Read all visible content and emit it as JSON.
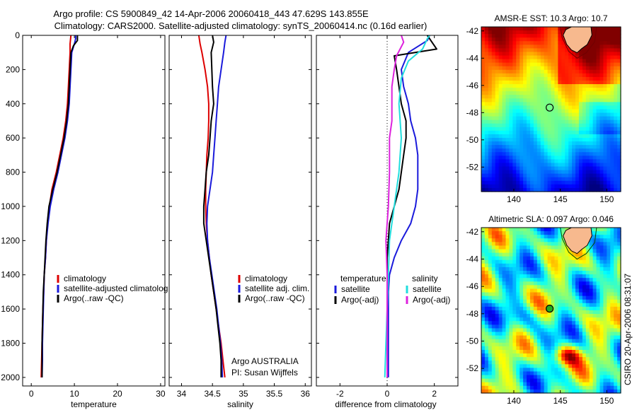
{
  "header": {
    "line1": "Argo profile: CS 5900849_42 14-Apr-2006 20060418_443 47.629S 143.855E",
    "line2": "Climatology: CARS2000. Satellite-adjusted climatology: synTS_20060414.nc (0.16d earlier)"
  },
  "credits": {
    "org": "Argo AUSTRALIA",
    "pi": "PI: Susan Wijffels",
    "stamp": "CSIRO 20-Apr-2006 08:31:07"
  },
  "colors": {
    "climatology": "#dd0000",
    "satellite": "#1a1adb",
    "argo": "#000000",
    "sat_salinity": "#22dddd",
    "argo_salinity": "#dd22dd",
    "land": "#f7b98e"
  },
  "chart_data": [
    {
      "type": "line",
      "xlabel": "temperature",
      "xlim": [
        -2,
        31
      ],
      "xticks": [
        0,
        10,
        20,
        30
      ],
      "ylim": [
        2050,
        0
      ],
      "yticks": [
        0,
        200,
        400,
        600,
        800,
        1000,
        1200,
        1400,
        1600,
        1800,
        2000
      ],
      "series": [
        {
          "name": "climatology",
          "color": "#dd0000",
          "points": [
            [
              9.2,
              0
            ],
            [
              9.0,
              50
            ],
            [
              9.0,
              100
            ],
            [
              8.8,
              200
            ],
            [
              8.6,
              300
            ],
            [
              8.4,
              400
            ],
            [
              8.0,
              500
            ],
            [
              7.4,
              600
            ],
            [
              6.6,
              700
            ],
            [
              5.8,
              800
            ],
            [
              4.8,
              900
            ],
            [
              4.2,
              1000
            ],
            [
              3.8,
              1100
            ],
            [
              3.5,
              1200
            ],
            [
              3.3,
              1300
            ],
            [
              3.0,
              1400
            ],
            [
              2.9,
              1500
            ],
            [
              2.7,
              1600
            ],
            [
              2.6,
              1700
            ],
            [
              2.5,
              1800
            ],
            [
              2.4,
              1900
            ],
            [
              2.3,
              2000
            ]
          ]
        },
        {
          "name": "satellite-adjusted climatolog",
          "color": "#1a1adb",
          "points": [
            [
              10.3,
              0
            ],
            [
              10.3,
              20
            ],
            [
              10.0,
              50
            ],
            [
              9.4,
              100
            ],
            [
              9.2,
              200
            ],
            [
              9.0,
              300
            ],
            [
              8.8,
              400
            ],
            [
              8.4,
              500
            ],
            [
              7.8,
              600
            ],
            [
              7.0,
              700
            ],
            [
              6.2,
              800
            ],
            [
              5.2,
              900
            ],
            [
              4.4,
              1000
            ],
            [
              3.9,
              1100
            ],
            [
              3.5,
              1200
            ],
            [
              3.3,
              1300
            ],
            [
              3.0,
              1400
            ],
            [
              2.9,
              1500
            ],
            [
              2.8,
              1600
            ],
            [
              2.7,
              1700
            ],
            [
              2.6,
              1800
            ],
            [
              2.6,
              1900
            ],
            [
              2.5,
              2000
            ]
          ]
        },
        {
          "name": "Argo(..raw -QC)",
          "color": "#000000",
          "points": [
            [
              10.7,
              0
            ],
            [
              10.7,
              30
            ],
            [
              9.8,
              60
            ],
            [
              9.2,
              100
            ],
            [
              9.0,
              200
            ],
            [
              8.8,
              300
            ],
            [
              8.6,
              400
            ],
            [
              8.2,
              500
            ],
            [
              7.6,
              600
            ],
            [
              6.8,
              700
            ],
            [
              6.0,
              800
            ],
            [
              5.0,
              900
            ],
            [
              4.1,
              1000
            ],
            [
              3.7,
              1100
            ],
            [
              3.4,
              1200
            ],
            [
              3.2,
              1300
            ],
            [
              3.0,
              1400
            ],
            [
              2.8,
              1500
            ],
            [
              2.7,
              1600
            ],
            [
              2.6,
              1700
            ],
            [
              2.5,
              1800
            ],
            [
              2.5,
              1900
            ],
            [
              2.5,
              2000
            ]
          ]
        }
      ],
      "legend": [
        "climatology",
        "satellite-adjusted climatolog",
        "Argo(..raw -QC)"
      ]
    },
    {
      "type": "line",
      "xlabel": "salinity",
      "xlim": [
        33.8,
        36.1
      ],
      "xticks": [
        34,
        34.5,
        35,
        35.5,
        36
      ],
      "ylim": [
        2050,
        0
      ],
      "series": [
        {
          "name": "climatology",
          "color": "#dd0000",
          "points": [
            [
              34.28,
              0
            ],
            [
              34.3,
              50
            ],
            [
              34.33,
              100
            ],
            [
              34.38,
              200
            ],
            [
              34.42,
              300
            ],
            [
              34.44,
              400
            ],
            [
              34.44,
              500
            ],
            [
              34.43,
              600
            ],
            [
              34.41,
              700
            ],
            [
              34.4,
              800
            ],
            [
              34.39,
              900
            ],
            [
              34.39,
              1000
            ],
            [
              34.4,
              1100
            ],
            [
              34.42,
              1200
            ],
            [
              34.45,
              1300
            ],
            [
              34.48,
              1400
            ],
            [
              34.52,
              1500
            ],
            [
              34.56,
              1600
            ],
            [
              34.6,
              1700
            ],
            [
              34.64,
              1800
            ],
            [
              34.67,
              1900
            ],
            [
              34.7,
              2000
            ]
          ]
        },
        {
          "name": "satellite adj. clim.",
          "color": "#1a1adb",
          "points": [
            [
              34.72,
              0
            ],
            [
              34.7,
              40
            ],
            [
              34.68,
              100
            ],
            [
              34.64,
              200
            ],
            [
              34.6,
              300
            ],
            [
              34.58,
              400
            ],
            [
              34.56,
              500
            ],
            [
              34.54,
              600
            ],
            [
              34.52,
              700
            ],
            [
              34.5,
              800
            ],
            [
              34.46,
              900
            ],
            [
              34.42,
              1000
            ],
            [
              34.41,
              1100
            ],
            [
              34.42,
              1200
            ],
            [
              34.45,
              1300
            ],
            [
              34.49,
              1400
            ],
            [
              34.53,
              1500
            ],
            [
              34.57,
              1600
            ],
            [
              34.6,
              1700
            ],
            [
              34.63,
              1800
            ],
            [
              34.65,
              1900
            ],
            [
              34.66,
              2000
            ]
          ]
        },
        {
          "name": "Argo(..raw -QC)",
          "color": "#000000",
          "points": [
            [
              34.5,
              0
            ],
            [
              34.52,
              40
            ],
            [
              34.48,
              100
            ],
            [
              34.49,
              200
            ],
            [
              34.5,
              300
            ],
            [
              34.52,
              400
            ],
            [
              34.48,
              500
            ],
            [
              34.46,
              600
            ],
            [
              34.44,
              700
            ],
            [
              34.4,
              800
            ],
            [
              34.38,
              900
            ],
            [
              34.36,
              1000
            ],
            [
              34.36,
              1100
            ],
            [
              34.4,
              1200
            ],
            [
              34.44,
              1300
            ],
            [
              34.48,
              1400
            ],
            [
              34.52,
              1500
            ],
            [
              34.56,
              1600
            ],
            [
              34.59,
              1700
            ],
            [
              34.62,
              1800
            ],
            [
              34.64,
              1900
            ],
            [
              34.64,
              2000
            ]
          ]
        }
      ],
      "legend": [
        "climatology",
        "satellite adj. clim.",
        "Argo(..raw -QC)"
      ]
    },
    {
      "type": "line",
      "xlabel": "difference from climatology",
      "xlim": [
        -3,
        3
      ],
      "xticks": [
        -2,
        0,
        2
      ],
      "ylim": [
        2050,
        0
      ],
      "series": [
        {
          "name": "temperature satellite",
          "color": "#1a1adb",
          "points": [
            [
              1.8,
              0
            ],
            [
              1.7,
              30
            ],
            [
              0.9,
              100
            ],
            [
              0.6,
              200
            ],
            [
              0.7,
              300
            ],
            [
              0.9,
              400
            ],
            [
              1.0,
              500
            ],
            [
              1.2,
              600
            ],
            [
              1.3,
              700
            ],
            [
              1.3,
              800
            ],
            [
              1.3,
              900
            ],
            [
              1.2,
              1000
            ],
            [
              1.0,
              1100
            ],
            [
              0.6,
              1200
            ],
            [
              0.3,
              1300
            ],
            [
              0.1,
              1400
            ],
            [
              0.05,
              1500
            ],
            [
              0.05,
              1600
            ],
            [
              0.05,
              1700
            ],
            [
              0.05,
              1800
            ],
            [
              0.05,
              1900
            ],
            [
              0.05,
              2000
            ]
          ]
        },
        {
          "name": "temperature Argo(-adj)",
          "color": "#000000",
          "points": [
            [
              1.7,
              0
            ],
            [
              2.1,
              80
            ],
            [
              0.3,
              120
            ],
            [
              0.4,
              200
            ],
            [
              0.5,
              300
            ],
            [
              0.6,
              400
            ],
            [
              0.8,
              500
            ],
            [
              0.8,
              600
            ],
            [
              0.7,
              700
            ],
            [
              0.6,
              800
            ],
            [
              0.5,
              900
            ],
            [
              0.3,
              1000
            ],
            [
              0.1,
              1100
            ],
            [
              0.05,
              1200
            ],
            [
              0,
              1300
            ],
            [
              0,
              1400
            ],
            [
              0,
              1500
            ],
            [
              0,
              1600
            ],
            [
              0,
              1700
            ],
            [
              0,
              1800
            ],
            [
              0,
              1900
            ],
            [
              0,
              2000
            ]
          ]
        },
        {
          "name": "salinity satellite",
          "color": "#22dddd",
          "points": [
            [
              1.8,
              0
            ],
            [
              1.7,
              20
            ],
            [
              1.5,
              80
            ],
            [
              0.9,
              150
            ],
            [
              0.6,
              250
            ],
            [
              0.5,
              400
            ],
            [
              0.6,
              600
            ],
            [
              0.5,
              800
            ],
            [
              0.3,
              1000
            ],
            [
              0.1,
              1200
            ],
            [
              0.05,
              1400
            ],
            [
              0,
              1600
            ],
            [
              -0.05,
              1800
            ],
            [
              -0.1,
              2000
            ]
          ]
        },
        {
          "name": "salinity Argo(-adj)",
          "color": "#dd22dd",
          "points": [
            [
              0.6,
              0
            ],
            [
              0.7,
              40
            ],
            [
              0.4,
              120
            ],
            [
              0.3,
              200
            ],
            [
              0.2,
              300
            ],
            [
              0.2,
              400
            ],
            [
              0.2,
              500
            ],
            [
              0.1,
              600
            ],
            [
              0.1,
              800
            ],
            [
              0.05,
              1000
            ],
            [
              0,
              1100
            ],
            [
              -0.05,
              1200
            ],
            [
              0,
              1400
            ],
            [
              0,
              1600
            ],
            [
              0,
              1800
            ],
            [
              0,
              2000
            ]
          ]
        }
      ],
      "legend": [
        "temperature",
        "salinity",
        "satellite",
        "satellite",
        "Argo(-adj)",
        "Argo(-adj)"
      ]
    },
    {
      "type": "heatmap",
      "title": "AMSR-E SST: 10.3 Argo: 10.7",
      "xticks": [
        140,
        145,
        150
      ],
      "yticks": [
        -42,
        -44,
        -46,
        -48,
        -50,
        -52
      ],
      "xlim": [
        136.5,
        151.5
      ],
      "ylim": [
        -53.8,
        -41.7
      ],
      "profile_marker": {
        "lon": 143.855,
        "lat": -47.629
      }
    },
    {
      "type": "heatmap",
      "title": "Altimetric SLA: 0.097 Argo: 0.046",
      "xticks": [
        140,
        145,
        150
      ],
      "yticks": [
        -42,
        -44,
        -46,
        -48,
        -50,
        -52
      ],
      "xlim": [
        136.5,
        151.5
      ],
      "ylim": [
        -53.8,
        -41.7
      ],
      "profile_marker": {
        "lon": 143.855,
        "lat": -47.629
      }
    }
  ]
}
